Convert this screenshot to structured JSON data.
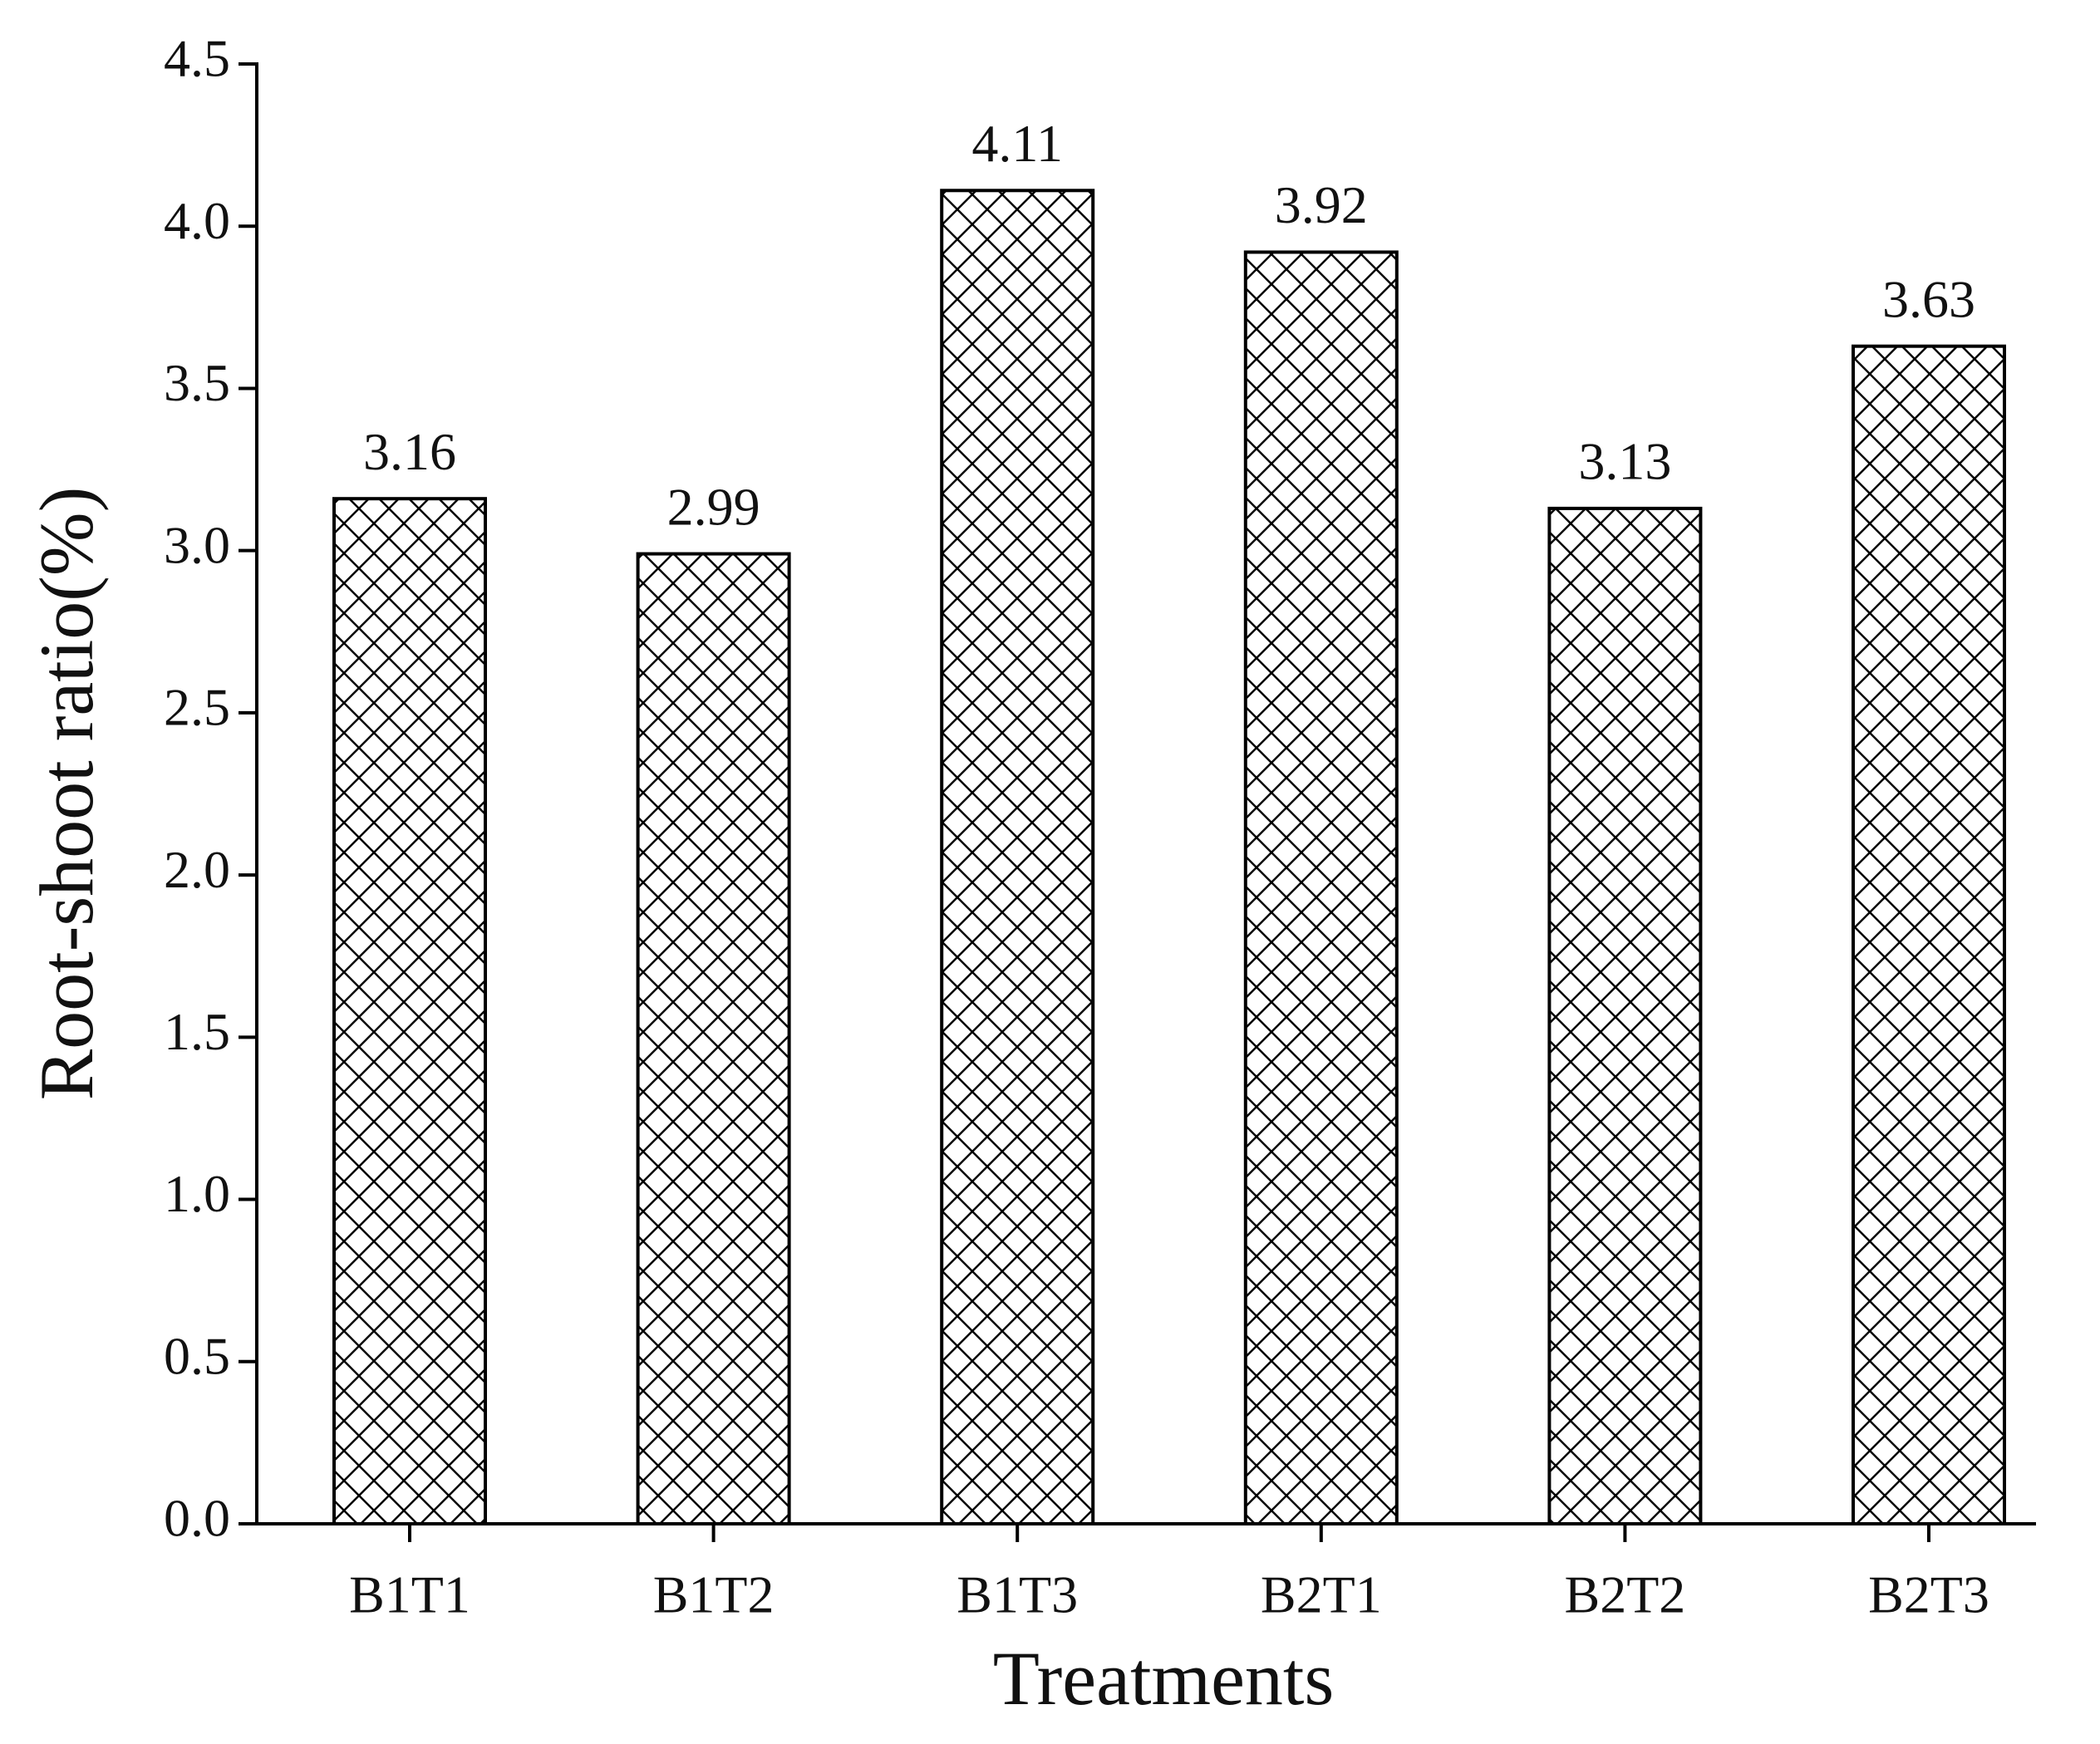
{
  "chart_data": {
    "type": "bar",
    "x_label": "Treatments",
    "y_label": "Root-shoot ratio(%)",
    "categories": [
      "B1T1",
      "B1T2",
      "B1T3",
      "B2T1",
      "B2T2",
      "B2T3"
    ],
    "values": [
      3.16,
      2.99,
      4.11,
      3.92,
      3.13,
      3.63
    ],
    "color": "#000000",
    "ylim": [
      0,
      4.5
    ],
    "yticks": [
      {
        "value": 0,
        "label": "0.0"
      },
      0.5,
      {
        "value": 1,
        "label": "1.0"
      },
      1.5,
      {
        "value": 2,
        "label": "2.0"
      },
      2.5,
      {
        "value": 3,
        "label": "3.0"
      },
      3.5,
      {
        "value": 4,
        "label": "4.0"
      },
      4.5
    ],
    "grid": false
  }
}
